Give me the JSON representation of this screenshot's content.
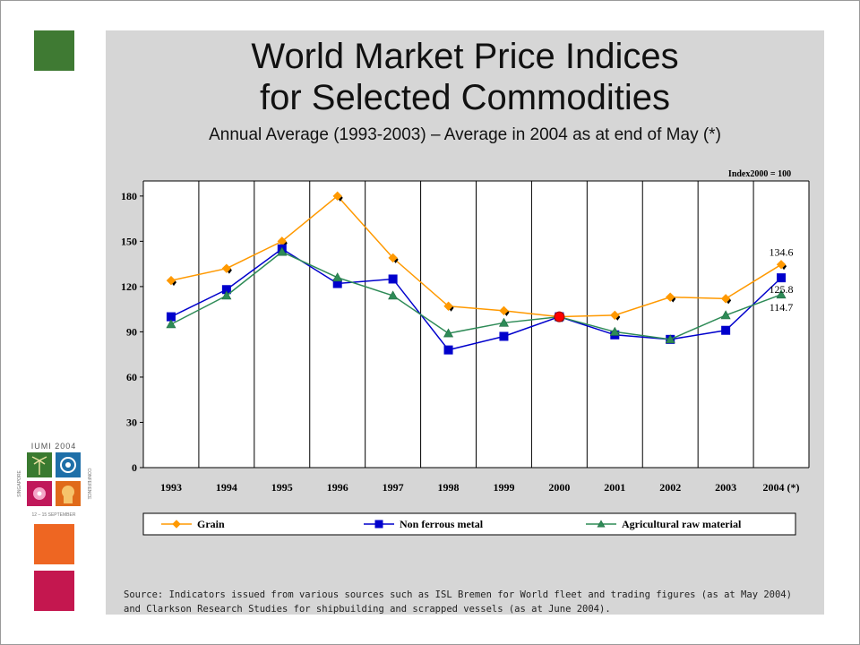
{
  "title_line1": "World Market Price Indices",
  "title_line2": "for Selected Commodities",
  "subtitle": "Annual Average (1993-2003) – Average in 2004 as at end of May (*)",
  "source_line1": "Source: Indicators issued from various sources such as ISL Bremen for World fleet and trading figures (as at May 2004)",
  "source_line2": "and Clarkson Research Studies for shipbuilding and scrapped vessels (as at June 2004).",
  "logo": {
    "top_text": "IUMI 2004",
    "side_left": "SINGAPORE",
    "side_right": "CONFERENCE",
    "bottom_text": "12 – 15 SEPTEMBER"
  },
  "chart_data": {
    "type": "line",
    "note": "Index2000 = 100",
    "categories": [
      "1993",
      "1994",
      "1995",
      "1996",
      "1997",
      "1998",
      "1999",
      "2000",
      "2001",
      "2002",
      "2003",
      "2004 (*)"
    ],
    "ylim": [
      0,
      190
    ],
    "yticks": [
      0,
      30,
      60,
      90,
      120,
      150,
      180
    ],
    "grid_vertical": true,
    "legend_position": "bottom",
    "series": [
      {
        "name": "Grain",
        "color": "#ff9900",
        "marker": "diamond",
        "values": [
          124,
          132,
          150,
          180,
          139,
          107,
          104,
          100,
          101,
          113,
          112,
          134.6
        ]
      },
      {
        "name": "Non ferrous metal",
        "color": "#0000cc",
        "marker": "square",
        "values": [
          100,
          118,
          145,
          122,
          125,
          78,
          87,
          100,
          88,
          85,
          91,
          125.8
        ]
      },
      {
        "name": "Agricultural raw material",
        "color": "#2e8b57",
        "marker": "triangle",
        "values": [
          95,
          114,
          143,
          126,
          114,
          89,
          96,
          100,
          90,
          85,
          101,
          114.7
        ]
      }
    ],
    "highlight": {
      "category": "2000",
      "value": 100,
      "color": "#ff0000"
    },
    "data_labels": [
      {
        "series": 0,
        "index": 11,
        "text": "134.6"
      },
      {
        "series": 1,
        "index": 11,
        "text": "125.8"
      },
      {
        "series": 2,
        "index": 11,
        "text": "114.7"
      }
    ]
  }
}
